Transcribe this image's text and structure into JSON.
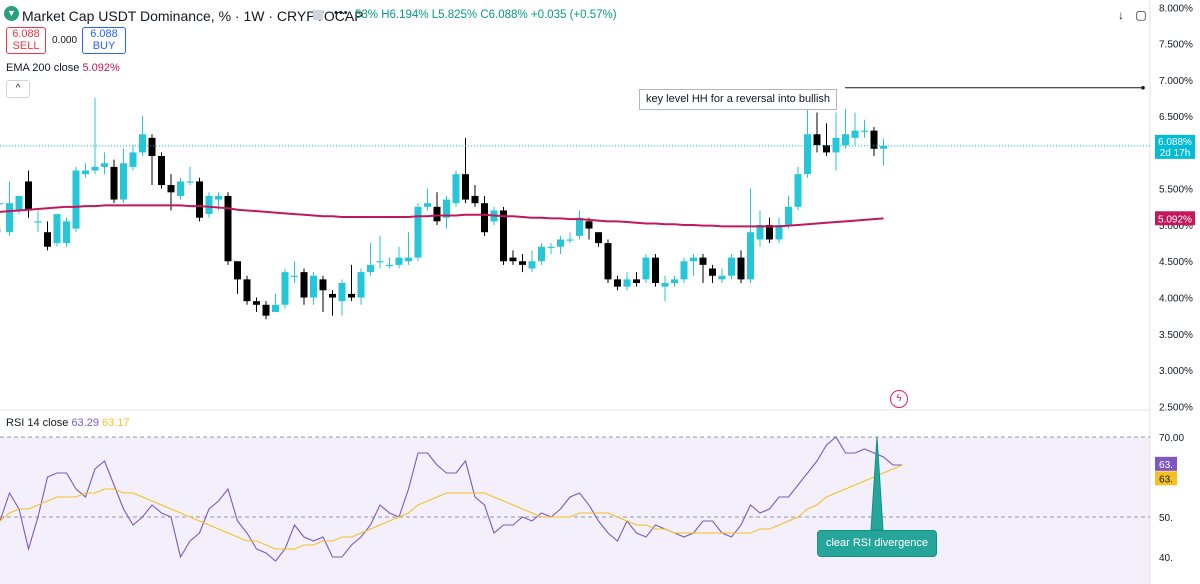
{
  "header": {
    "symbol_title": "Market Cap USDT Dominance, % · 1W · CRYPTOCAP",
    "ohlc_o": "53%",
    "ohlc_h": "H6.194%",
    "ohlc_l": "L5.825%",
    "ohlc_c": "C6.088%",
    "ohlc_change": "+0.035 (+0.57%)"
  },
  "trade": {
    "sell_price": "6.088",
    "sell_label": "SELL",
    "spread": "0.000",
    "buy_price": "6.088",
    "buy_label": "BUY"
  },
  "ema": {
    "label": "EMA 200 close",
    "value": "5.092%"
  },
  "rsi": {
    "label": "RSI 14 close",
    "value": "63.29",
    "ma_value": "63.17"
  },
  "annotations": {
    "key_level": "key level HH for a reversal into bullish",
    "divergence": "clear RSI divergence"
  },
  "colors": {
    "up": "#26c6da",
    "down": "#000000",
    "ema": "#c2185b",
    "rsi": "#7e57c2",
    "rsi_ma": "#f5bf25",
    "last": "#00bcd4"
  },
  "chart_data": [
    {
      "type": "candlestick",
      "title": "Market Cap USDT Dominance, % · 1W · CRYPTOCAP",
      "y_axis_labels": [
        "8.000%",
        "7.500%",
        "7.000%",
        "6.500%",
        "6.000%",
        "5.500%",
        "5.000%",
        "4.500%",
        "4.000%",
        "3.500%",
        "3.000%",
        "2.500%"
      ],
      "ylim": [
        2.45,
        8.1
      ],
      "last_price_label": "6.088%",
      "countdown": "2d 17h",
      "ema_price_label": "5.092%",
      "key_level": 6.89,
      "candles": [
        [
          5.3,
          5.3,
          4.95,
          4.9
        ],
        [
          4.9,
          5.3,
          5.6,
          4.85
        ],
        [
          5.2,
          5.4,
          5.4,
          5.15
        ],
        [
          5.6,
          5.2,
          5.75,
          5.1
        ],
        [
          5.05,
          5.05,
          5.2,
          4.9
        ],
        [
          4.9,
          4.7,
          5.05,
          4.65
        ],
        [
          4.75,
          5.15,
          5.15,
          4.7
        ],
        [
          4.75,
          5.05,
          5.1,
          4.7
        ],
        [
          4.95,
          5.75,
          5.8,
          4.9
        ],
        [
          5.7,
          5.75,
          5.85,
          5.65
        ],
        [
          5.75,
          5.8,
          6.75,
          5.7
        ],
        [
          5.8,
          5.85,
          6.0,
          5.7
        ],
        [
          5.8,
          5.35,
          5.9,
          5.3
        ],
        [
          5.35,
          5.85,
          6.05,
          5.3
        ],
        [
          5.8,
          6.0,
          6.1,
          5.75
        ],
        [
          6.0,
          6.25,
          6.5,
          5.95
        ],
        [
          6.2,
          5.95,
          6.25,
          5.55
        ],
        [
          5.95,
          5.55,
          6.0,
          5.5
        ],
        [
          5.55,
          5.45,
          5.7,
          5.2
        ],
        [
          5.4,
          5.6,
          5.65,
          5.35
        ],
        [
          5.6,
          5.6,
          5.8,
          5.55
        ],
        [
          5.6,
          5.1,
          5.65,
          5.05
        ],
        [
          5.15,
          5.4,
          5.45,
          5.1
        ],
        [
          5.35,
          5.4,
          5.45,
          5.2
        ],
        [
          5.4,
          4.5,
          5.45,
          4.45
        ],
        [
          4.5,
          4.25,
          4.5,
          4.05
        ],
        [
          4.25,
          3.95,
          4.3,
          3.9
        ],
        [
          3.95,
          3.9,
          4.0,
          3.8
        ],
        [
          3.9,
          3.75,
          3.95,
          3.7
        ],
        [
          3.8,
          3.9,
          4.05,
          3.8
        ],
        [
          3.9,
          4.35,
          4.4,
          3.85
        ],
        [
          4.3,
          4.3,
          4.5,
          4.2
        ],
        [
          4.35,
          4.0,
          4.4,
          3.9
        ],
        [
          4.0,
          4.3,
          4.35,
          3.9
        ],
        [
          4.25,
          4.1,
          4.3,
          3.8
        ],
        [
          4.05,
          4.0,
          4.1,
          3.75
        ],
        [
          3.95,
          4.2,
          4.25,
          3.75
        ],
        [
          4.05,
          4.0,
          4.45,
          3.95
        ],
        [
          4.0,
          4.35,
          4.4,
          3.9
        ],
        [
          4.35,
          4.45,
          4.75,
          4.3
        ],
        [
          4.5,
          4.5,
          4.85,
          4.4
        ],
        [
          4.45,
          4.45,
          4.55,
          4.4
        ],
        [
          4.45,
          4.55,
          4.7,
          4.4
        ],
        [
          4.5,
          4.55,
          4.9,
          4.45
        ],
        [
          4.55,
          5.25,
          5.3,
          4.5
        ],
        [
          5.25,
          5.3,
          5.5,
          5.2
        ],
        [
          5.25,
          5.05,
          5.45,
          5.0
        ],
        [
          5.1,
          5.35,
          5.4,
          4.95
        ],
        [
          5.3,
          5.7,
          5.75,
          5.25
        ],
        [
          5.7,
          5.35,
          6.2,
          5.3
        ],
        [
          5.4,
          5.3,
          5.55,
          5.25
        ],
        [
          5.3,
          4.9,
          5.4,
          4.85
        ],
        [
          5.05,
          5.2,
          5.25,
          5.0
        ],
        [
          5.2,
          4.5,
          5.25,
          4.45
        ],
        [
          4.55,
          4.5,
          4.65,
          4.45
        ],
        [
          4.5,
          4.45,
          4.6,
          4.35
        ],
        [
          4.4,
          4.5,
          4.65,
          4.35
        ],
        [
          4.5,
          4.7,
          4.75,
          4.45
        ],
        [
          4.7,
          4.7,
          4.75,
          4.6
        ],
        [
          4.7,
          4.8,
          4.85,
          4.6
        ],
        [
          4.8,
          4.8,
          4.9,
          4.75
        ],
        [
          4.85,
          5.1,
          5.2,
          4.8
        ],
        [
          5.05,
          4.95,
          5.1,
          4.8
        ],
        [
          4.9,
          4.75,
          4.9,
          4.7
        ],
        [
          4.75,
          4.25,
          4.8,
          4.2
        ],
        [
          4.25,
          4.15,
          4.3,
          4.1
        ],
        [
          4.15,
          4.25,
          4.35,
          4.1
        ],
        [
          4.25,
          4.2,
          4.35,
          4.15
        ],
        [
          4.25,
          4.55,
          4.6,
          4.2
        ],
        [
          4.55,
          4.2,
          4.6,
          4.15
        ],
        [
          4.15,
          4.2,
          4.3,
          3.95
        ],
        [
          4.2,
          4.25,
          4.3,
          4.15
        ],
        [
          4.25,
          4.5,
          4.55,
          4.2
        ],
        [
          4.5,
          4.55,
          4.6,
          4.3
        ],
        [
          4.55,
          4.45,
          4.6,
          4.2
        ],
        [
          4.4,
          4.3,
          4.45,
          4.2
        ],
        [
          4.25,
          4.3,
          4.4,
          4.2
        ],
        [
          4.3,
          4.55,
          4.6,
          4.25
        ],
        [
          4.55,
          4.25,
          4.65,
          4.2
        ],
        [
          4.25,
          4.9,
          5.5,
          4.2
        ],
        [
          4.8,
          5.0,
          5.2,
          4.7
        ],
        [
          5.0,
          4.8,
          5.1,
          4.75
        ],
        [
          4.8,
          5.0,
          5.1,
          4.75
        ],
        [
          5.0,
          5.25,
          5.4,
          4.95
        ],
        [
          5.25,
          5.7,
          5.8,
          5.2
        ],
        [
          5.7,
          6.25,
          6.75,
          5.65
        ],
        [
          6.25,
          6.1,
          6.55,
          6.0
        ],
        [
          6.1,
          6.0,
          6.4,
          5.95
        ],
        [
          6.0,
          6.2,
          6.55,
          5.75
        ],
        [
          6.1,
          6.25,
          6.6,
          6.05
        ],
        [
          6.2,
          6.3,
          6.55,
          6.1
        ],
        [
          6.3,
          6.3,
          6.45,
          6.2
        ],
        [
          6.3,
          6.05,
          6.35,
          5.95
        ],
        [
          6.05,
          6.09,
          6.19,
          5.82
        ]
      ],
      "ema200": [
        5.18,
        5.19,
        5.2,
        5.21,
        5.22,
        5.23,
        5.24,
        5.25,
        5.25,
        5.26,
        5.26,
        5.27,
        5.27,
        5.27,
        5.27,
        5.27,
        5.27,
        5.27,
        5.27,
        5.27,
        5.26,
        5.26,
        5.25,
        5.24,
        5.23,
        5.21,
        5.2,
        5.19,
        5.18,
        5.17,
        5.16,
        5.15,
        5.14,
        5.13,
        5.12,
        5.12,
        5.11,
        5.11,
        5.11,
        5.11,
        5.11,
        5.11,
        5.11,
        5.11,
        5.12,
        5.12,
        5.13,
        5.13,
        5.13,
        5.14,
        5.14,
        5.14,
        5.13,
        5.12,
        5.12,
        5.11,
        5.1,
        5.1,
        5.09,
        5.09,
        5.08,
        5.08,
        5.07,
        5.06,
        5.05,
        5.05,
        5.04,
        5.03,
        5.02,
        5.02,
        5.01,
        5.01,
        5.0,
        5.0,
        4.99,
        4.99,
        4.98,
        4.98,
        4.98,
        4.98,
        4.98,
        4.98,
        4.98,
        4.99,
        5.0,
        5.01,
        5.02,
        5.03,
        5.04,
        5.05,
        5.06,
        5.07,
        5.08,
        5.09
      ]
    },
    {
      "type": "line",
      "title": "RSI 14 close",
      "y_axis_labels": [
        "70.00",
        "50.",
        "40."
      ],
      "ylim": [
        36,
        72.6
      ],
      "series": [
        {
          "name": "RSI 14 close",
          "values": [
            49,
            56,
            52,
            42,
            50,
            60,
            61,
            61,
            57,
            55,
            62,
            64,
            58,
            52,
            48,
            50,
            53,
            51,
            50,
            40,
            44,
            46,
            52,
            54,
            57,
            49,
            46,
            42,
            41,
            39,
            42,
            48,
            45,
            44,
            45,
            40,
            40,
            43,
            45,
            48,
            53,
            51,
            50,
            57,
            66,
            66,
            63,
            61,
            61,
            64,
            55,
            53,
            46,
            48,
            48,
            50,
            49,
            51,
            50,
            52,
            55,
            56,
            53,
            49,
            46,
            44,
            49,
            46,
            45,
            48,
            47,
            46,
            45,
            46,
            49,
            49,
            46,
            45,
            48,
            53,
            51,
            52,
            55,
            55,
            58,
            61,
            64,
            68,
            70,
            66,
            66,
            67,
            66,
            65,
            63,
            63
          ]
        },
        {
          "name": "MA",
          "values": [
            49,
            51,
            52,
            52,
            53,
            54,
            55,
            55,
            55,
            56,
            56,
            57,
            57,
            56,
            56,
            55,
            54,
            53,
            52,
            51,
            50,
            49,
            48,
            47,
            46,
            45,
            44,
            44,
            43,
            42,
            42,
            42,
            43,
            43,
            44,
            44,
            45,
            45,
            46,
            47,
            48,
            49,
            50,
            51,
            53,
            54,
            55,
            56,
            56,
            56,
            56,
            56,
            55,
            54,
            53,
            52,
            51,
            50,
            50,
            50,
            50,
            51,
            51,
            51,
            51,
            50,
            49,
            48,
            48,
            47,
            47,
            46,
            46,
            46,
            46,
            46,
            46,
            46,
            46,
            46,
            47,
            47,
            48,
            49,
            50,
            52,
            53,
            55,
            56,
            57,
            58,
            59,
            60,
            61,
            62,
            63
          ]
        }
      ],
      "axis_value_tags": [
        "63.",
        "63."
      ],
      "divergence_point_value": 70.0
    }
  ]
}
